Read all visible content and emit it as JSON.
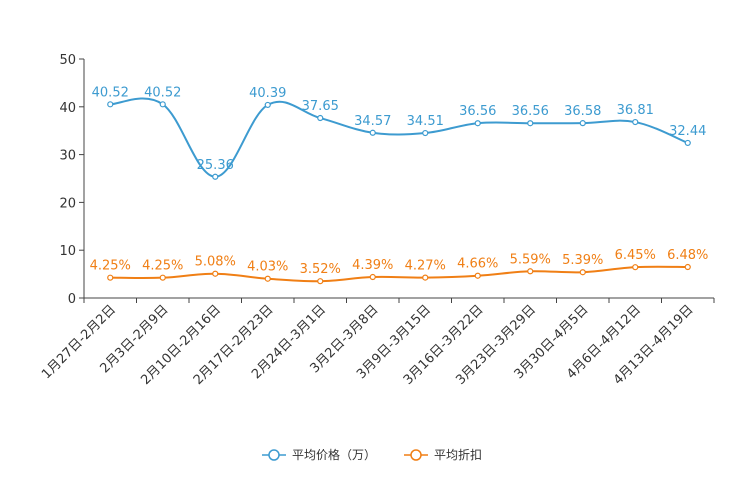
{
  "chart_data": {
    "type": "line",
    "categories": [
      "1月27日-2月2日",
      "2月3日-2月9日",
      "2月10日-2月16日",
      "2月17日-2月23日",
      "2月24日-3月1日",
      "3月2日-3月8日",
      "3月9日-3月15日",
      "3月16日-3月22日",
      "3月23日-3月29日",
      "3月30日-4月5日",
      "4月6日-4月12日",
      "4月13日-4月19日"
    ],
    "ylim": [
      0,
      50
    ],
    "yticks": [
      0,
      10,
      20,
      30,
      40,
      50
    ],
    "ytick_labels": [
      "0",
      "10",
      "20",
      "30",
      "40",
      "50"
    ],
    "series": [
      {
        "name": "平均价格（万）",
        "color": "#3d9bd0",
        "values": [
          40.52,
          40.52,
          25.36,
          40.39,
          37.65,
          34.57,
          34.51,
          36.56,
          36.56,
          36.58,
          36.81,
          32.44
        ],
        "labels": [
          "40.52",
          "40.52",
          "25.36",
          "40.39",
          "37.65",
          "34.57",
          "34.51",
          "36.56",
          "36.56",
          "36.58",
          "36.81",
          "32.44"
        ]
      },
      {
        "name": "平均折扣",
        "color": "#f07f15",
        "values": [
          4.25,
          4.25,
          5.08,
          4.03,
          3.52,
          4.39,
          4.27,
          4.66,
          5.59,
          5.39,
          6.45,
          6.48
        ],
        "labels": [
          "4.25%",
          "4.25%",
          "5.08%",
          "4.03%",
          "3.52%",
          "4.39%",
          "4.27%",
          "4.66%",
          "5.59%",
          "5.39%",
          "6.45%",
          "6.48%"
        ]
      }
    ],
    "legend_position": "bottom-center",
    "grid": false
  }
}
